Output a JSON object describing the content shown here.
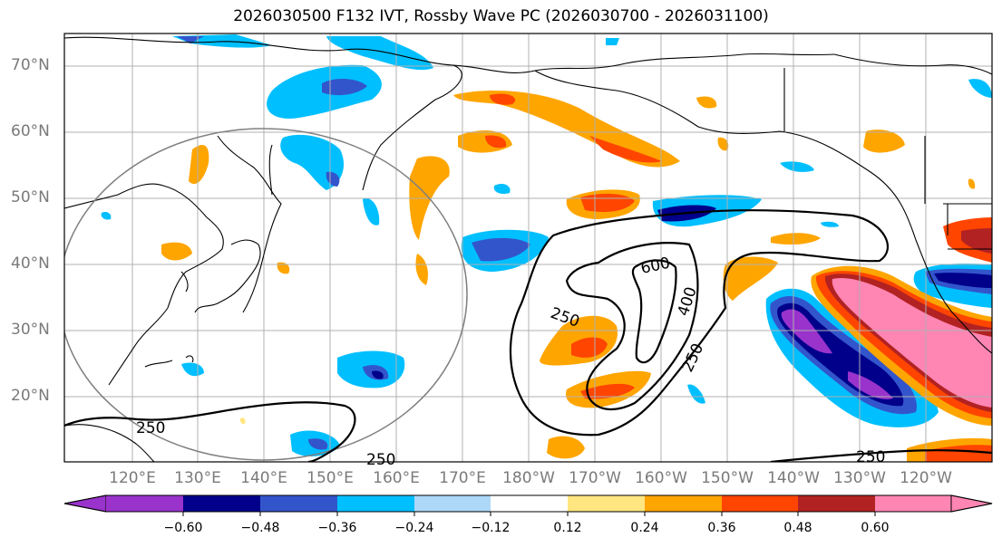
{
  "title": "2026030500 F132 IVT, Rossby Wave PC (2026030700 - 2026031100)",
  "latitude_labels": [
    "70°N",
    "60°N",
    "50°N",
    "40°N",
    "30°N",
    "20°N"
  ],
  "longitude_labels": [
    "120°E",
    "130°E",
    "140°E",
    "150°E",
    "160°E",
    "170°E",
    "180°W",
    "170°W",
    "160°W",
    "150°W",
    "140°W",
    "130°W",
    "120°W"
  ],
  "contour_labels": [
    "250",
    "250",
    "600",
    "400",
    "250",
    "250",
    "250"
  ],
  "colorbar": {
    "tick_labels": [
      "−0.60",
      "−0.48",
      "−0.36",
      "−0.24",
      "−0.12",
      "0.12",
      "0.24",
      "0.36",
      "0.48",
      "0.60"
    ],
    "colors": [
      "#9933cc",
      "#00008b",
      "#3355cc",
      "#00bfff",
      "#add8f7",
      "#ffffff",
      "#ffe680",
      "#ffa500",
      "#ff4500",
      "#b22222",
      "#ff85b3"
    ]
  },
  "fill_colors": {
    "neg_strong": "#9933cc",
    "neg_dark": "#00008b",
    "neg_mid": "#3355cc",
    "neg_light": "#00bfff",
    "pos_light": "#ffe680",
    "pos_mid": "#ffa500",
    "pos_strong": "#ff4500",
    "pos_dark": "#b22222",
    "pos_max": "#ff85b3"
  }
}
